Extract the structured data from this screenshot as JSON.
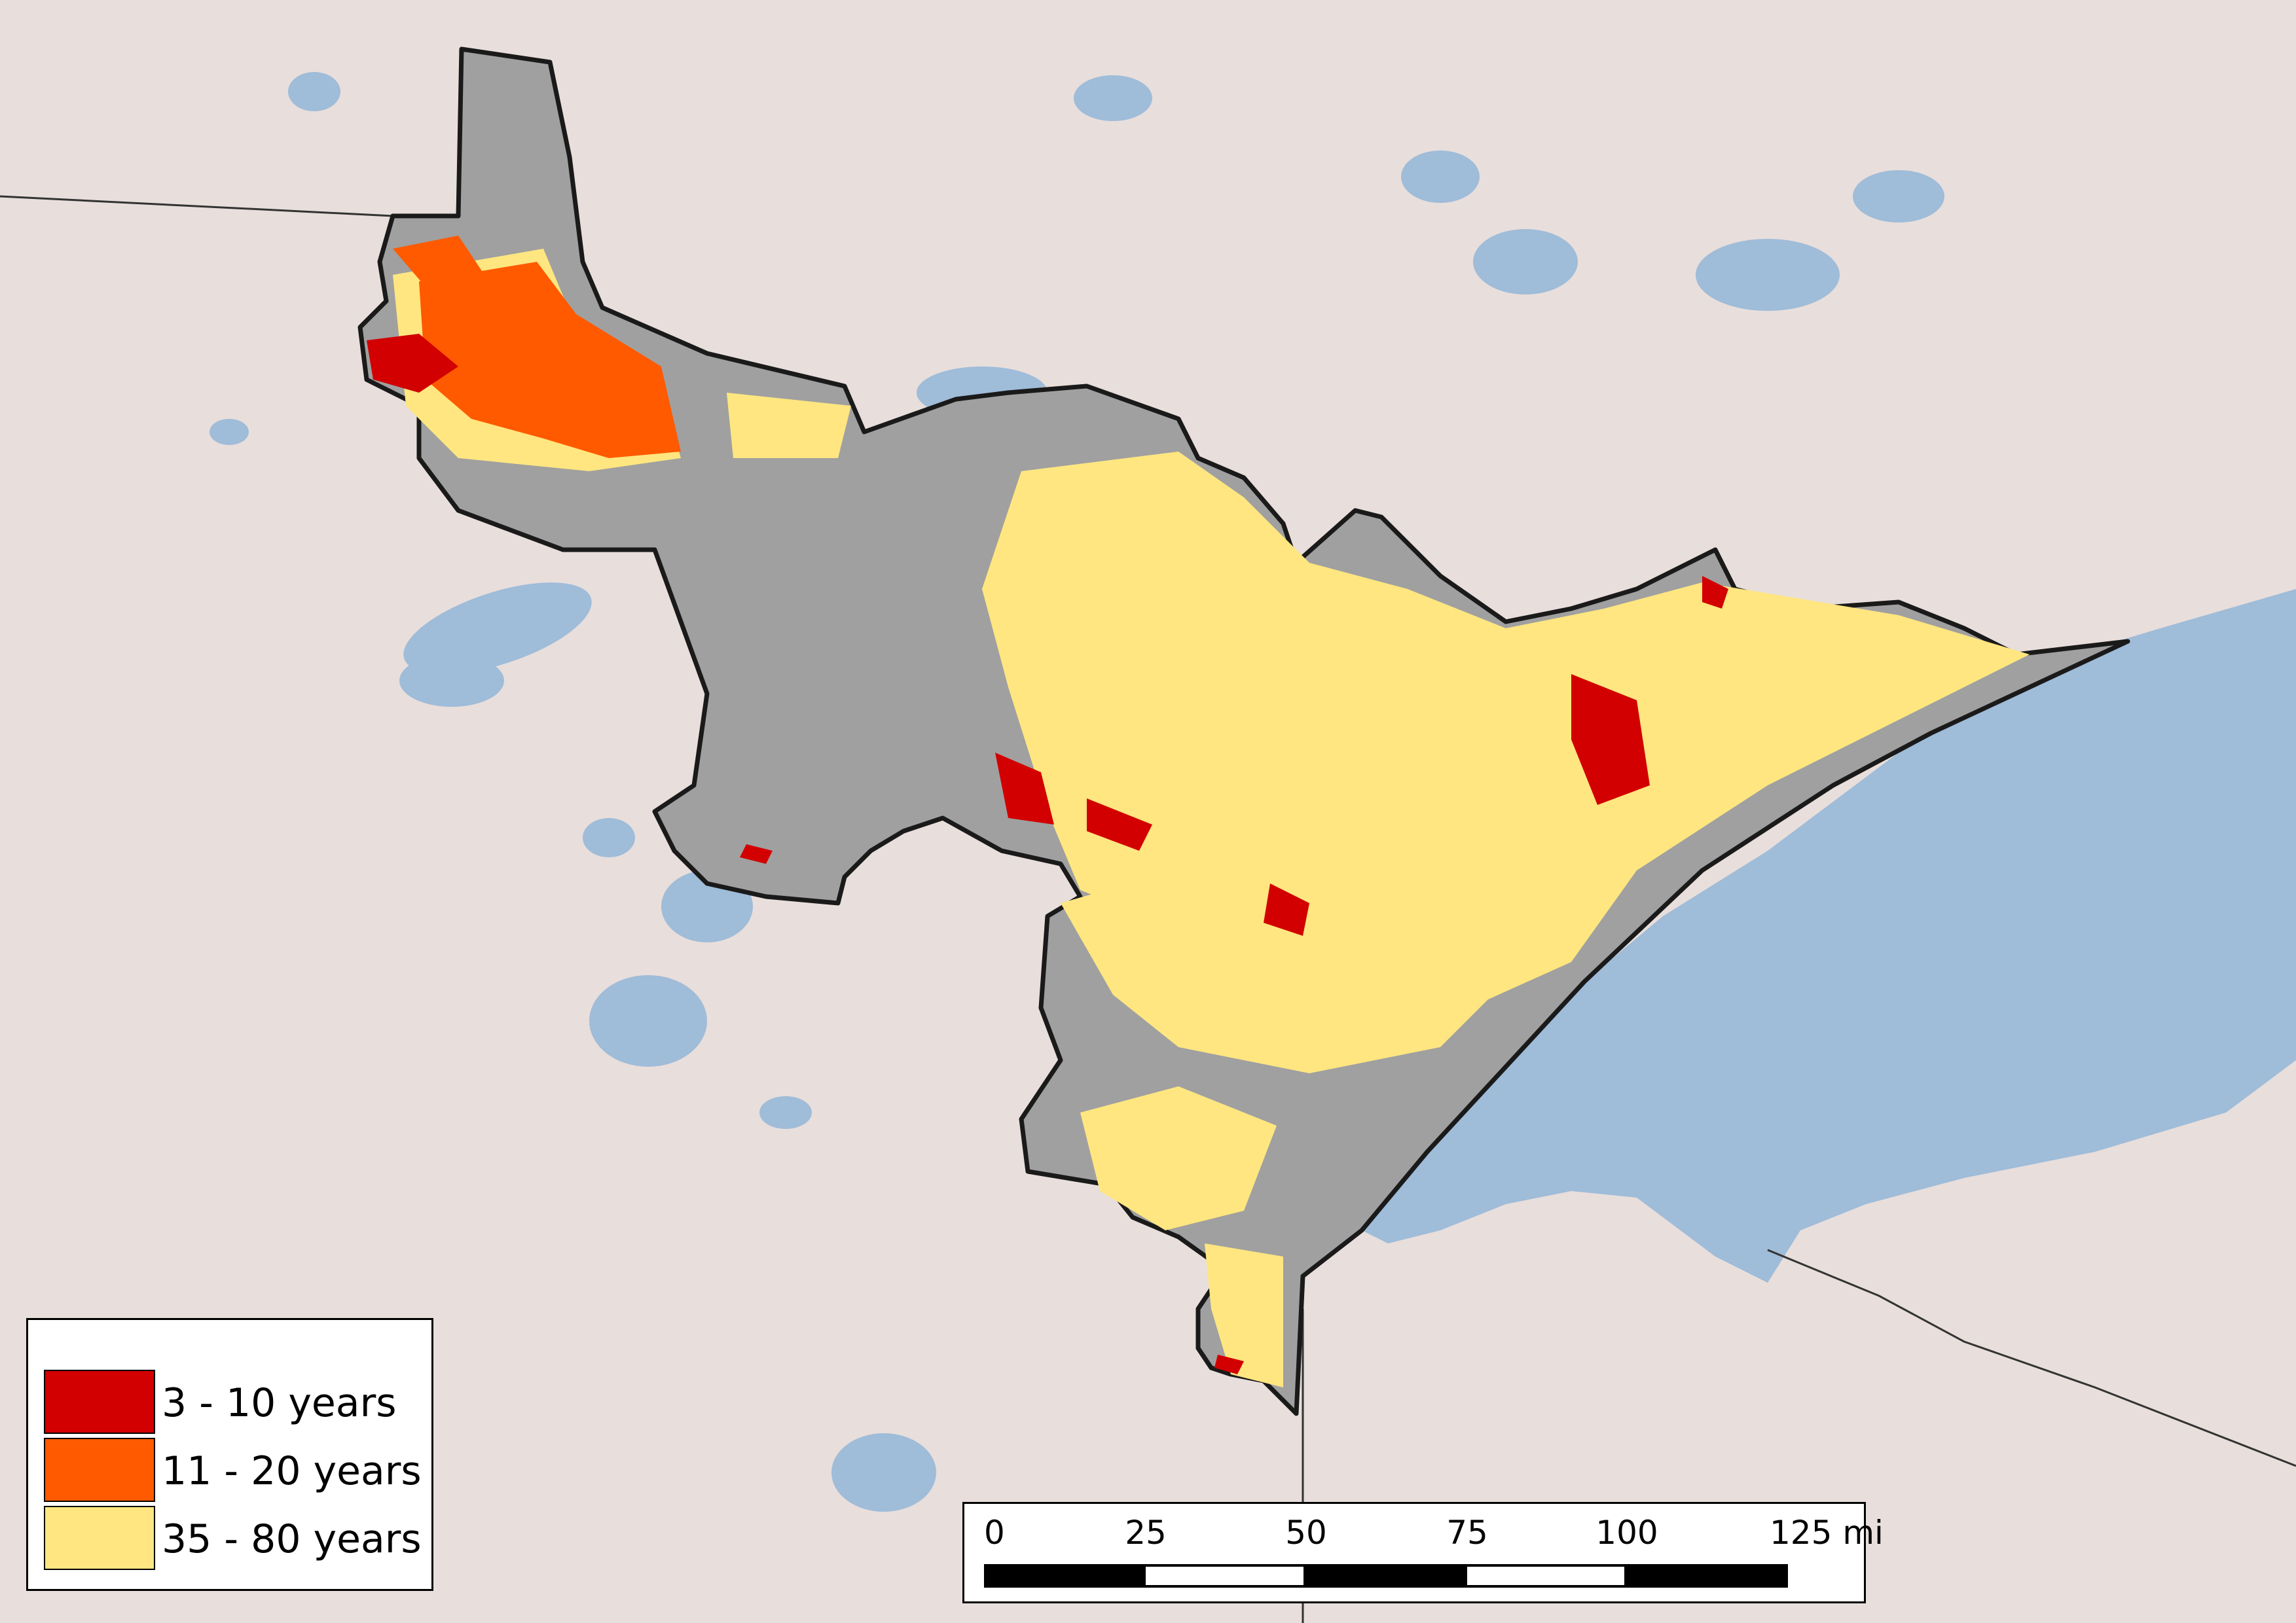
{
  "colors": {
    "land": "#e8dedb",
    "water": "#9fbcd9",
    "region": "#a0a0a0",
    "class_1": "#d20000",
    "class_2": "#ff5a00",
    "class_3": "#ffe680",
    "boundary": "#1a1a1a"
  },
  "legend": {
    "items": [
      {
        "label": "3 - 10 years",
        "color": "#d20000"
      },
      {
        "label": "11 - 20 years",
        "color": "#ff5a00"
      },
      {
        "label": "35 - 80 years",
        "color": "#ffe680"
      }
    ]
  },
  "scale_bar": {
    "ticks": [
      "0",
      "25",
      "50",
      "75",
      "100",
      "125 mi"
    ],
    "unit": "mi"
  }
}
